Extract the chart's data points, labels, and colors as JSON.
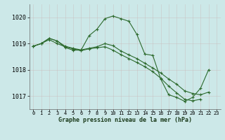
{
  "bg_color": "#cce8e8",
  "line_color": "#2d6a2d",
  "ylim": [
    1016.5,
    1020.5
  ],
  "xlim": [
    -0.5,
    23.5
  ],
  "yticks": [
    1017,
    1018,
    1019,
    1020
  ],
  "xtick_labels": [
    "0",
    "1",
    "2",
    "3",
    "4",
    "5",
    "6",
    "7",
    "8",
    "9",
    "10",
    "11",
    "12",
    "13",
    "14",
    "15",
    "16",
    "17",
    "18",
    "19",
    "20",
    "21",
    "22",
    "23"
  ],
  "xticks": [
    0,
    1,
    2,
    3,
    4,
    5,
    6,
    7,
    8,
    9,
    10,
    11,
    12,
    13,
    14,
    15,
    16,
    17,
    18,
    19,
    20,
    21,
    22,
    23
  ],
  "xlabel": "Graphe pression niveau de la mer (hPa)",
  "series": [
    {
      "x": [
        0,
        1,
        2,
        3,
        4,
        5,
        6,
        7,
        8,
        9,
        10,
        11,
        12,
        13,
        14,
        15,
        16,
        17,
        18,
        19,
        20,
        21,
        22
      ],
      "y": [
        1018.9,
        1019.0,
        1019.2,
        1019.1,
        1018.85,
        1018.75,
        1018.75,
        1019.3,
        1019.55,
        1019.95,
        1020.05,
        1019.95,
        1019.85,
        1019.35,
        1018.6,
        1018.55,
        1017.65,
        1017.05,
        1016.95,
        1016.8,
        1016.95,
        1017.3,
        1018.0
      ]
    },
    {
      "x": [
        0,
        1,
        2,
        3,
        4,
        5,
        6,
        7,
        8,
        9,
        10,
        11,
        12,
        13,
        14,
        15,
        16,
        17,
        18,
        19,
        20,
        21,
        22
      ],
      "y": [
        1018.9,
        1019.0,
        1019.2,
        1019.1,
        1018.9,
        1018.82,
        1018.76,
        1018.82,
        1018.88,
        1019.0,
        1018.92,
        1018.72,
        1018.57,
        1018.43,
        1018.25,
        1018.07,
        1017.88,
        1017.65,
        1017.45,
        1017.2,
        1017.1,
        1017.05,
        1017.15
      ]
    },
    {
      "x": [
        0,
        1,
        2,
        3,
        4,
        5,
        6,
        7,
        8,
        9,
        10,
        11,
        12,
        13,
        14,
        15,
        16,
        17,
        18,
        19,
        20,
        21
      ],
      "y": [
        1018.9,
        1019.0,
        1019.15,
        1019.0,
        1018.88,
        1018.8,
        1018.73,
        1018.8,
        1018.84,
        1018.88,
        1018.75,
        1018.58,
        1018.43,
        1018.28,
        1018.12,
        1017.93,
        1017.68,
        1017.38,
        1017.12,
        1016.88,
        1016.82,
        1016.88
      ]
    }
  ]
}
